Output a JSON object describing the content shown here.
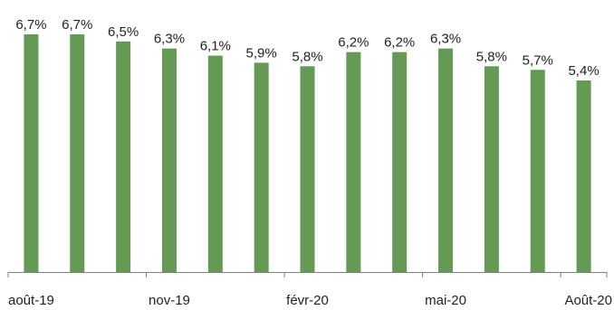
{
  "chart_data": {
    "type": "bar",
    "categories": [
      "août-19",
      "",
      "",
      "nov-19",
      "",
      "",
      "févr-20",
      "",
      "",
      "mai-20",
      "",
      "",
      "Août-20"
    ],
    "values": [
      6.7,
      6.7,
      6.5,
      6.3,
      6.1,
      5.9,
      5.8,
      6.2,
      6.2,
      6.3,
      5.8,
      5.7,
      5.4
    ],
    "data_labels": [
      "6,7%",
      "6,7%",
      "6,5%",
      "6,3%",
      "6,1%",
      "5,9%",
      "5,8%",
      "6,2%",
      "6,2%",
      "6,3%",
      "5,8%",
      "5,7%",
      "5,4%"
    ],
    "x_tick_labels": [
      "août-19",
      "nov-19",
      "févr-20",
      "mai-20",
      "Août-20"
    ],
    "title": "",
    "xlabel": "",
    "ylabel": "",
    "ylim": [
      0,
      6.7
    ],
    "bar_color": "#659a54",
    "axis_color": "#7f7f7f",
    "label_color": "#222222",
    "grid": false,
    "legend": "none"
  }
}
